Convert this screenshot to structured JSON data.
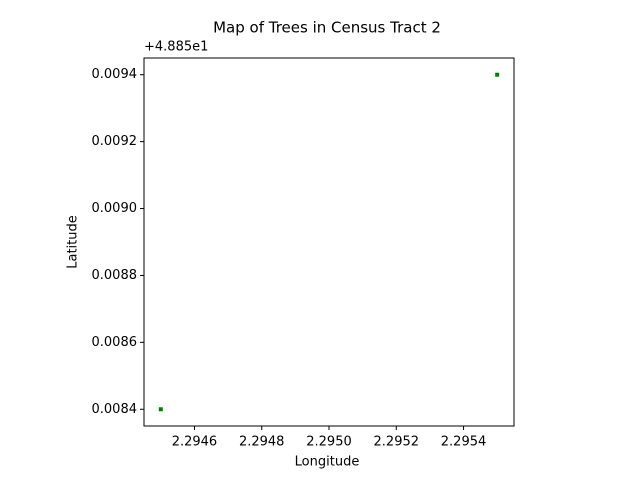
{
  "chart_data": {
    "type": "scatter",
    "title": "Map of Trees in Census Tract 2",
    "x_label": "Longitude",
    "y_label": "Latitude",
    "y_offset_label": "+4.885e1",
    "x": [
      2.2945,
      2.2955
    ],
    "values": [
      0.0084,
      0.0094
    ],
    "color": "green",
    "xlim": [
      2.29445,
      2.29555
    ],
    "ylim": [
      0.00835,
      0.00945
    ],
    "xticks": [
      2.2946,
      2.2948,
      {
        "value": 2.295,
        "label": "2.2950"
      },
      2.2952,
      2.2954
    ],
    "yticks": [
      0.0084,
      0.0086,
      0.0088,
      {
        "value": 0.009,
        "label": "0.0090"
      },
      0.0092,
      0.0094
    ],
    "grid": false
  }
}
